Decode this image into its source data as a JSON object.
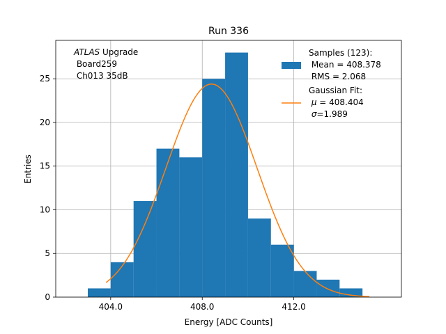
{
  "chart_data": {
    "type": "histogram",
    "title": "Run 336",
    "xlabel": "Energy [ADC Counts]",
    "ylabel": "Entries",
    "xlim": [
      401.6,
      416.7
    ],
    "ylim": [
      0,
      29.4
    ],
    "grid": true,
    "xticks": [
      {
        "value": 404.0,
        "label": "404.0"
      },
      {
        "value": 408.0,
        "label": "408.0"
      },
      {
        "value": 412.0,
        "label": "412.0"
      }
    ],
    "yticks": [
      {
        "value": 0,
        "label": "0"
      },
      {
        "value": 5,
        "label": "5"
      },
      {
        "value": 10,
        "label": "10"
      },
      {
        "value": 15,
        "label": "15"
      },
      {
        "value": 20,
        "label": "20"
      },
      {
        "value": 25,
        "label": "25"
      }
    ],
    "bins": [
      {
        "low": 403.0,
        "high": 404.0,
        "count": 1
      },
      {
        "low": 404.0,
        "high": 405.0,
        "count": 4
      },
      {
        "low": 405.0,
        "high": 406.0,
        "count": 11
      },
      {
        "low": 406.0,
        "high": 407.0,
        "count": 17
      },
      {
        "low": 407.0,
        "high": 408.0,
        "count": 16
      },
      {
        "low": 408.0,
        "high": 409.0,
        "count": 25
      },
      {
        "low": 409.0,
        "high": 410.0,
        "count": 28
      },
      {
        "low": 410.0,
        "high": 411.0,
        "count": 9
      },
      {
        "low": 411.0,
        "high": 412.0,
        "count": 6
      },
      {
        "low": 412.0,
        "high": 413.0,
        "count": 3
      },
      {
        "low": 413.0,
        "high": 414.0,
        "count": 2
      },
      {
        "low": 414.0,
        "high": 415.0,
        "count": 1
      }
    ],
    "fit": {
      "type": "gaussian",
      "mu": 408.404,
      "sigma": 1.989,
      "amplitude": 24.4,
      "x_range": [
        403.8,
        415.3
      ]
    },
    "colors": {
      "bars": "#1f77b4",
      "fit": "#ff7f0e",
      "grid": "#b0b0b0"
    },
    "annotation": {
      "emphasis": "ATLAS",
      "suffix": " Upgrade",
      "line2": " Board259",
      "line3": " Ch013 35dB"
    },
    "legend": {
      "placement": "top-right",
      "samples": {
        "line1": "Samples (123):",
        "line2": " Mean = 408.378",
        "line3": " RMS = 2.068"
      },
      "fit": {
        "line1": "Gaussian Fit:",
        "line2_prefix": " ",
        "mu_symbol": "μ",
        "line2_suffix": " = 408.404",
        "line3_prefix": " ",
        "sigma_symbol": "σ",
        "line3_suffix": "=1.989"
      }
    }
  }
}
